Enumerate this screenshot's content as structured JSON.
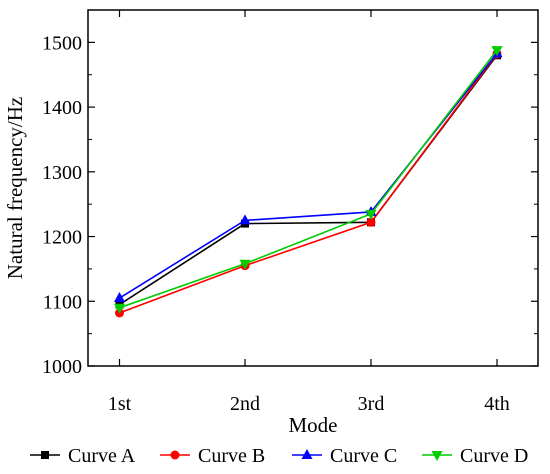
{
  "chart_data": {
    "type": "line",
    "categories": [
      "1st",
      "2nd",
      "3rd",
      "4th"
    ],
    "xlabel": "Mode",
    "ylabel": "Natural frequency/Hz",
    "ylim": [
      1000,
      1550
    ],
    "yticks": [
      1000,
      1100,
      1200,
      1300,
      1400,
      1500
    ],
    "grid": false,
    "legend_position": "bottom",
    "series": [
      {
        "name": "Curve A",
        "color": "#000000",
        "marker": "square",
        "values": [
          1095,
          1220,
          1222,
          1480
        ]
      },
      {
        "name": "Curve B",
        "color": "#ff0000",
        "marker": "circle",
        "values": [
          1082,
          1155,
          1222,
          1482
        ]
      },
      {
        "name": "Curve C",
        "color": "#0000ff",
        "marker": "triangle-up",
        "values": [
          1105,
          1225,
          1238,
          1483
        ]
      },
      {
        "name": "Curve D",
        "color": "#00cc00",
        "marker": "triangle-down",
        "values": [
          1090,
          1158,
          1235,
          1488
        ]
      }
    ]
  }
}
